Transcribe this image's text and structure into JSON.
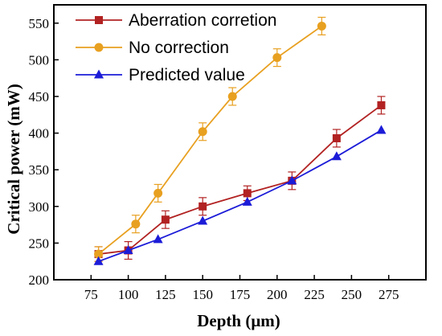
{
  "chart_data": {
    "type": "line",
    "xlabel": "Depth (μm)",
    "ylabel": "Critical power (mW)",
    "xlim": [
      50,
      300
    ],
    "ylim": [
      200,
      575
    ],
    "xticks": [
      75,
      100,
      125,
      150,
      175,
      200,
      225,
      250,
      275
    ],
    "yticks": [
      200,
      250,
      300,
      350,
      400,
      450,
      500,
      550
    ],
    "legend_position": "top-left",
    "grid": false,
    "series": [
      {
        "name": "Aberration corretion",
        "color": "#b22222",
        "marker": "square",
        "x": [
          80,
          100,
          125,
          150,
          180,
          210,
          240,
          270
        ],
        "y": [
          235,
          240,
          282,
          300,
          318,
          335,
          393,
          438
        ],
        "err": [
          10,
          12,
          12,
          12,
          10,
          12,
          12,
          12
        ]
      },
      {
        "name": "No correction",
        "color": "#e8a020",
        "marker": "circle",
        "x": [
          80,
          105,
          120,
          150,
          170,
          200,
          230
        ],
        "y": [
          235,
          276,
          318,
          402,
          450,
          503,
          546
        ],
        "err": [
          10,
          12,
          12,
          12,
          12,
          12,
          12
        ]
      },
      {
        "name": "Predicted value",
        "color": "#1c1cd8",
        "marker": "triangle",
        "x": [
          80,
          100,
          120,
          150,
          180,
          210,
          240,
          270
        ],
        "y": [
          225,
          240,
          255,
          280,
          306,
          335,
          368,
          404
        ],
        "err": []
      }
    ]
  }
}
